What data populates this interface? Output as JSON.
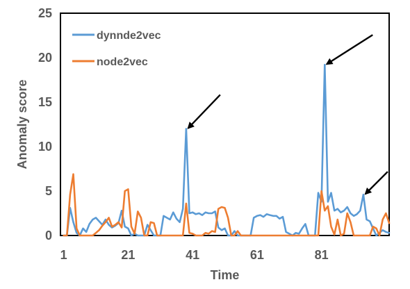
{
  "chart_data": {
    "type": "line",
    "title": "",
    "xlabel": "Time",
    "ylabel": "Anomaly score",
    "xlim": [
      0,
      102
    ],
    "ylim": [
      0,
      25
    ],
    "x_ticks": [
      1,
      21,
      41,
      61,
      81
    ],
    "y_ticks": [
      0,
      5,
      10,
      15,
      20,
      25
    ],
    "grid": false,
    "legend_position": "top-left",
    "x": [
      1,
      2,
      3,
      4,
      5,
      6,
      7,
      8,
      9,
      10,
      11,
      12,
      13,
      14,
      15,
      16,
      17,
      18,
      19,
      20,
      21,
      22,
      23,
      24,
      25,
      26,
      27,
      28,
      29,
      30,
      31,
      32,
      33,
      34,
      35,
      36,
      37,
      38,
      39,
      40,
      41,
      42,
      43,
      44,
      45,
      46,
      47,
      48,
      49,
      50,
      51,
      52,
      53,
      54,
      55,
      56,
      57,
      58,
      59,
      60,
      61,
      62,
      63,
      64,
      65,
      66,
      67,
      68,
      69,
      70,
      71,
      72,
      73,
      74,
      75,
      76,
      77,
      78,
      79,
      80,
      81,
      82,
      83,
      84,
      85,
      86,
      87,
      88,
      89,
      90,
      91,
      92,
      93,
      94,
      95,
      96,
      97,
      98,
      99,
      100,
      101,
      102
    ],
    "series": [
      {
        "name": "dynnde2vec",
        "color": "#5B9BD5",
        "values": [
          0,
          0,
          3.1,
          1.5,
          0.3,
          0,
          0.8,
          0.4,
          1.3,
          1.8,
          2.0,
          1.6,
          1.2,
          1.8,
          1.2,
          0.9,
          1.1,
          1.4,
          2.8,
          1.0,
          0.8,
          0,
          0.2,
          0,
          0,
          0,
          1.2,
          0.6,
          0,
          0,
          0,
          2.2,
          2.0,
          1.8,
          2.6,
          1.9,
          1.5,
          3.0,
          12.0,
          2.5,
          2.6,
          2.4,
          2.5,
          2.3,
          2.6,
          2.5,
          2.5,
          2.7,
          0.9,
          0.6,
          0.8,
          0,
          0,
          0.5,
          0,
          0,
          0,
          0,
          0,
          2.0,
          2.2,
          2.3,
          2.1,
          2.4,
          2.3,
          2.2,
          2.2,
          1.9,
          2.1,
          0.4,
          0.2,
          0,
          0.3,
          0.2,
          0.8,
          1.3,
          0,
          0,
          0,
          4.8,
          3.8,
          19.2,
          3.8,
          4.8,
          2.8,
          3.0,
          2.6,
          2.8,
          3.2,
          2.5,
          2.2,
          2.4,
          2.8,
          4.6,
          1.8,
          1.6,
          0.8,
          0,
          0.3,
          0.6,
          0.4,
          0.3
        ]
      },
      {
        "name": "node2vec",
        "color": "#ED7D31",
        "values": [
          0,
          0,
          4.6,
          6.9,
          0.8,
          0,
          0,
          0,
          0,
          0,
          0.3,
          0.6,
          1.1,
          1.5,
          2.0,
          1.0,
          1.2,
          1.5,
          0.9,
          5.0,
          5.2,
          1.0,
          0.2,
          2.7,
          2.0,
          0,
          0,
          1.5,
          1.4,
          0,
          0,
          0,
          0,
          0,
          0,
          0,
          0,
          0,
          3.6,
          0.3,
          0.2,
          0,
          0,
          0,
          0.3,
          0.2,
          0.5,
          0.4,
          3.0,
          3.2,
          3.1,
          2.0,
          0,
          0,
          0.5,
          0,
          0,
          0,
          0,
          0,
          0,
          0,
          0,
          0,
          0,
          0,
          0,
          0,
          0,
          0,
          0,
          0,
          0,
          0,
          0,
          0,
          0,
          0,
          0,
          0,
          5.0,
          2.8,
          3.3,
          1.0,
          0.1,
          1.8,
          0,
          0.2,
          2.5,
          1.5,
          0,
          0,
          0,
          0,
          0,
          0,
          1.0,
          0.8,
          0,
          1.8,
          2.5,
          1.4
        ]
      }
    ]
  },
  "annotations": {
    "arrows": [
      {
        "label": "",
        "target_x": 39,
        "target_y": 12.0
      },
      {
        "label": "",
        "target_x": 82,
        "target_y": 19.2
      },
      {
        "label": "",
        "target_x": 94,
        "target_y": 4.6
      }
    ]
  }
}
